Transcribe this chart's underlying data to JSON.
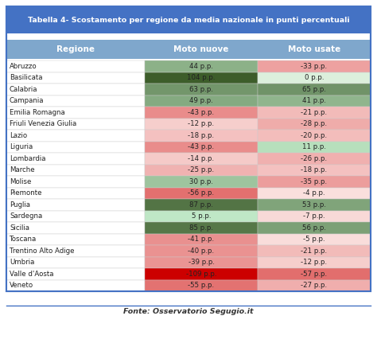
{
  "title": "Tabella 4- Scostamento per regione da media nazionale in punti percentuali",
  "footer": "Fonte: Osservatorio Segugio.it",
  "columns": [
    "Regione",
    "Moto nuove",
    "Moto usate"
  ],
  "rows": [
    {
      "region": "Abruzzo",
      "nuove": 44,
      "usate": -33
    },
    {
      "region": "Basilicata",
      "nuove": 104,
      "usate": 0
    },
    {
      "region": "Calabria",
      "nuove": 63,
      "usate": 65
    },
    {
      "region": "Campania",
      "nuove": 49,
      "usate": 41
    },
    {
      "region": "Emilia Romagna",
      "nuove": -43,
      "usate": -21
    },
    {
      "region": "Friuli Venezia Giulia",
      "nuove": -12,
      "usate": -28
    },
    {
      "region": "Lazio",
      "nuove": -18,
      "usate": -20
    },
    {
      "region": "Liguria",
      "nuove": -43,
      "usate": 11
    },
    {
      "region": "Lombardia",
      "nuove": -14,
      "usate": -26
    },
    {
      "region": "Marche",
      "nuove": -25,
      "usate": -18
    },
    {
      "region": "Molise",
      "nuove": 30,
      "usate": -35
    },
    {
      "region": "Piemonte",
      "nuove": -56,
      "usate": -4
    },
    {
      "region": "Puglia",
      "nuove": 87,
      "usate": 53
    },
    {
      "region": "Sardegna",
      "nuove": 5,
      "usate": -7
    },
    {
      "region": "Sicilia",
      "nuove": 85,
      "usate": 56
    },
    {
      "region": "Toscana",
      "nuove": -41,
      "usate": -5
    },
    {
      "region": "Trentino Alto Adige",
      "nuove": -40,
      "usate": -21
    },
    {
      "region": "Umbria",
      "nuove": -39,
      "usate": -12
    },
    {
      "region": "Valle d'Aosta",
      "nuove": -109,
      "usate": -57
    },
    {
      "region": "Veneto",
      "nuove": -55,
      "usate": -27
    }
  ],
  "title_bg": "#4472c4",
  "title_color": "#ffffff",
  "header_bg": "#7fa7cc",
  "header_color": "#ffffff",
  "outer_border": "#4472c4",
  "footer_color": "#333333",
  "max_abs": 109
}
